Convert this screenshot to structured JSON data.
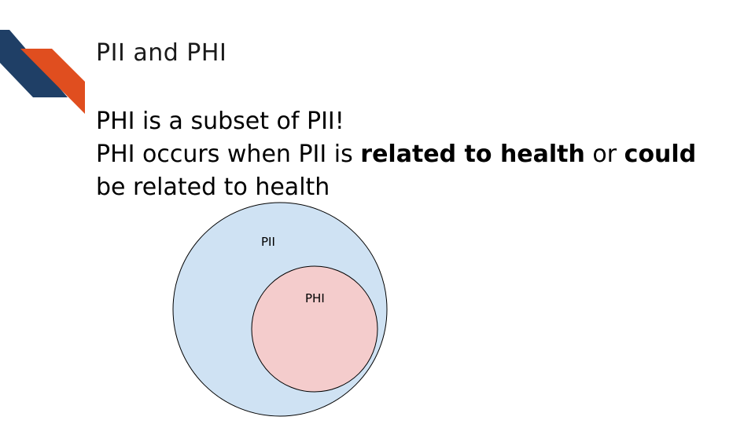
{
  "slide": {
    "title": "PII and PHI",
    "line1": "PHI is a subset of PII!",
    "line2": {
      "part1": "PHI occurs when PII is ",
      "bold1": "related to health",
      "part2": " or ",
      "bold2": "could",
      "part3": " be related to health"
    }
  },
  "diagram": {
    "outer_label": "PII",
    "inner_label": "PHI",
    "outer_fill": "#cfe2f3",
    "inner_fill": "#f4cccc"
  },
  "colors": {
    "accent_navy": "#1f3f66",
    "accent_orange": "#e04e1f"
  }
}
